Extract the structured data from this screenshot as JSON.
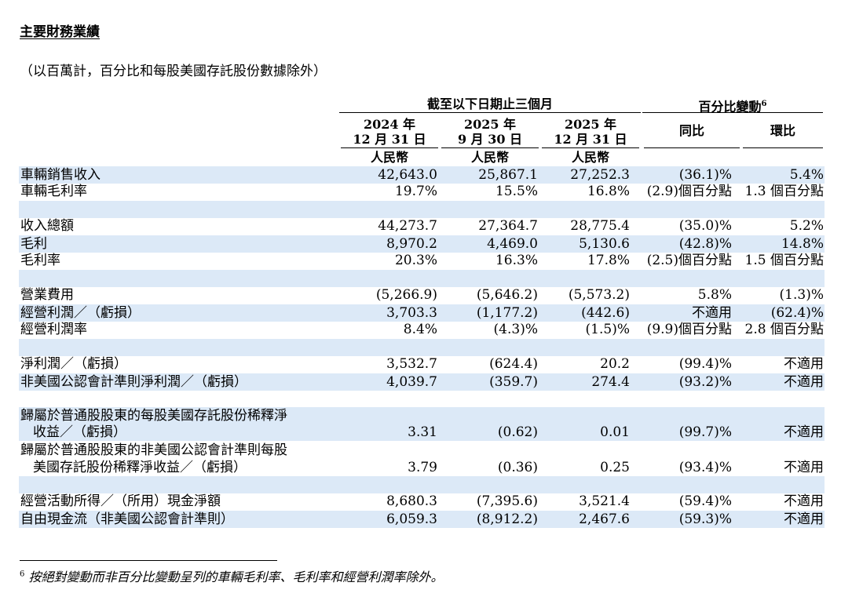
{
  "title": "主要財務業績",
  "subtitle": "（以百萬計，百分比和每股美國存託股份數據除外）",
  "header": {
    "period_group": "截至以下日期止三個月",
    "change_group": "百分比變動",
    "change_note": "6",
    "col1_year": "2024 年",
    "col1_date": "12 月 31 日",
    "col2_year": "2025 年",
    "col2_date": "9 月 30 日",
    "col3_year": "2025 年",
    "col3_date": "12 月 31 日",
    "currency": "人民幣",
    "yoy": "同比",
    "qoq": "環比"
  },
  "rows": [
    {
      "label": "車輛銷售收入",
      "v1": "42,643.0",
      "v2": "25,867.1",
      "v3": "27,252.3",
      "yoy": "(36.1)%",
      "qoq": "5.4%"
    },
    {
      "label": "車輛毛利率",
      "v1": "19.7%",
      "v2": "15.5%",
      "v3": "16.8%",
      "yoy": "(2.9)個百分點",
      "qoq": "1.3 個百分點"
    },
    {
      "label": "收入總額",
      "v1": "44,273.7",
      "v2": "27,364.7",
      "v3": "28,775.4",
      "yoy": "(35.0)%",
      "qoq": "5.2%"
    },
    {
      "label": "毛利",
      "v1": "8,970.2",
      "v2": "4,469.0",
      "v3": "5,130.6",
      "yoy": "(42.8)%",
      "qoq": "14.8%"
    },
    {
      "label": "毛利率",
      "v1": "20.3%",
      "v2": "16.3%",
      "v3": "17.8%",
      "yoy": "(2.5)個百分點",
      "qoq": "1.5 個百分點"
    },
    {
      "label": "營業費用",
      "v1": "(5,266.9)",
      "v2": "(5,646.2)",
      "v3": "(5,573.2)",
      "yoy": "5.8%",
      "qoq": "(1.3)%"
    },
    {
      "label": "經營利潤／（虧損）",
      "v1": "3,703.3",
      "v2": "(1,177.2)",
      "v3": "(442.6)",
      "yoy": "不適用",
      "qoq": "(62.4)%"
    },
    {
      "label": "經營利潤率",
      "v1": "8.4%",
      "v2": "(4.3)%",
      "v3": "(1.5)%",
      "yoy": "(9.9)個百分點",
      "qoq": "2.8 個百分點"
    },
    {
      "label": "淨利潤／（虧損）",
      "v1": "3,532.7",
      "v2": "(624.4)",
      "v3": "20.2",
      "yoy": "(99.4)%",
      "qoq": "不適用"
    },
    {
      "label": "非美國公認會計準則淨利潤／（虧損）",
      "v1": "4,039.7",
      "v2": "(359.7)",
      "v3": "274.4",
      "yoy": "(93.2)%",
      "qoq": "不適用"
    },
    {
      "label": "歸屬於普通股股東的每股美國存託股份稀釋淨",
      "label2": "收益／（虧損）",
      "v1": "3.31",
      "v2": "(0.62)",
      "v3": "0.01",
      "yoy": "(99.7)%",
      "qoq": "不適用"
    },
    {
      "label": "歸屬於普通股股東的非美國公認會計準則每股",
      "label2": "美國存託股份稀釋淨收益／（虧損）",
      "v1": "3.79",
      "v2": "(0.36)",
      "v3": "0.25",
      "yoy": "(93.4)%",
      "qoq": "不適用"
    },
    {
      "label": "經營活動所得／（所用）現金淨額",
      "v1": "8,680.3",
      "v2": "(7,395.6)",
      "v3": "3,521.4",
      "yoy": "(59.4)%",
      "qoq": "不適用"
    },
    {
      "label": "自由現金流（非美國公認會計準則）",
      "v1": "6,059.3",
      "v2": "(8,912.2)",
      "v3": "2,467.6",
      "yoy": "(59.3)%",
      "qoq": "不適用"
    }
  ],
  "footnote": {
    "mark": "6",
    "text": "按絕對變動而非百分比變動呈列的車輛毛利率、毛利率和經營利潤率除外。"
  }
}
